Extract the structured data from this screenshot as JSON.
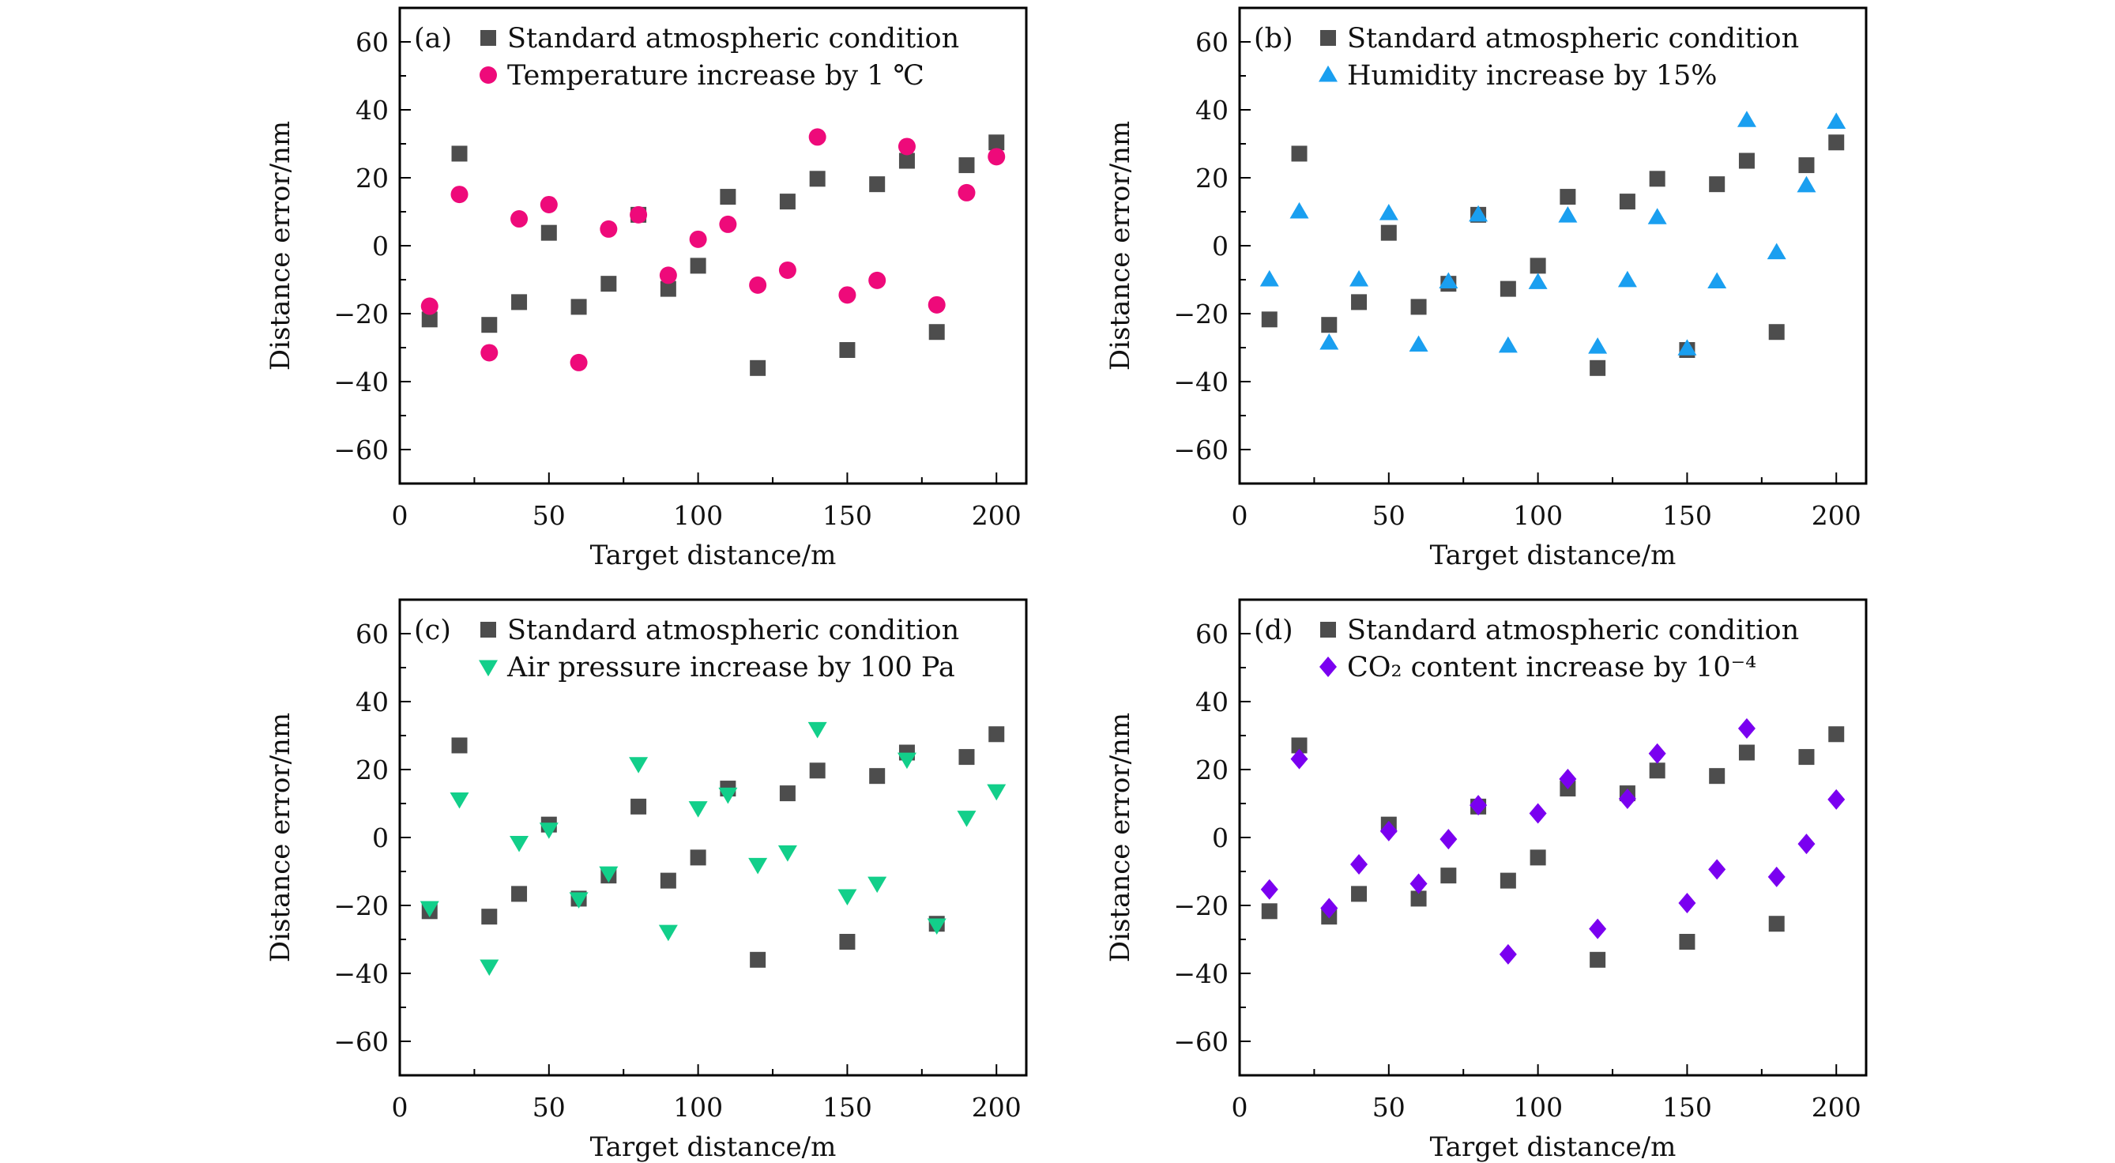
{
  "chart_data": [
    {
      "type": "scatter",
      "panel_label": "(a)",
      "xlabel": "Target distance/m",
      "ylabel": "Distance error/nm",
      "xlim": [
        0,
        210
      ],
      "ylim": [
        -70,
        70
      ],
      "xticks": [
        0,
        50,
        100,
        150,
        200
      ],
      "yticks": [
        -60,
        -40,
        -20,
        0,
        20,
        40,
        60
      ],
      "legend_position": "top-left",
      "x": [
        10,
        20,
        30,
        40,
        50,
        60,
        70,
        80,
        90,
        100,
        110,
        120,
        130,
        140,
        150,
        160,
        170,
        180,
        190,
        200
      ],
      "series": [
        {
          "name": "Standard atmospheric condition",
          "marker": "square",
          "color": "#4d4d4d",
          "values": [
            -21.7,
            27.1,
            -23.3,
            -16.6,
            3.8,
            -18.0,
            -11.2,
            9.1,
            -12.7,
            -5.9,
            14.4,
            -36.0,
            13.0,
            19.7,
            -30.7,
            18.1,
            25.0,
            -25.4,
            23.7,
            30.4
          ]
        },
        {
          "name": "Temperature increase by 1 ℃",
          "marker": "circle",
          "color": "#ee0a7a",
          "values": [
            -17.8,
            15.1,
            -31.5,
            7.9,
            12.1,
            -34.4,
            4.9,
            9.1,
            -8.7,
            1.9,
            6.3,
            -11.6,
            -7.2,
            32.0,
            -14.5,
            -10.2,
            29.2,
            -17.4,
            15.6,
            26.2
          ]
        }
      ]
    },
    {
      "type": "scatter",
      "panel_label": "(b)",
      "xlabel": "Target distance/m",
      "ylabel": "Distance error/nm",
      "xlim": [
        0,
        210
      ],
      "ylim": [
        -70,
        70
      ],
      "xticks": [
        0,
        50,
        100,
        150,
        200
      ],
      "yticks": [
        -60,
        -40,
        -20,
        0,
        20,
        40,
        60
      ],
      "legend_position": "top-left",
      "x": [
        10,
        20,
        30,
        40,
        50,
        60,
        70,
        80,
        90,
        100,
        110,
        120,
        130,
        140,
        150,
        160,
        170,
        180,
        190,
        200
      ],
      "series": [
        {
          "name": "Standard atmospheric condition",
          "marker": "square",
          "color": "#4d4d4d",
          "values": [
            -21.7,
            27.1,
            -23.3,
            -16.6,
            3.8,
            -18.0,
            -11.2,
            9.1,
            -12.7,
            -5.9,
            14.4,
            -36.0,
            13.0,
            19.7,
            -30.7,
            18.1,
            25.0,
            -25.4,
            23.7,
            30.4
          ]
        },
        {
          "name": "Humidity increase by 15%",
          "marker": "triangle-up",
          "color": "#1a9ff0",
          "values": [
            -10.0,
            10.0,
            -28.6,
            -10.0,
            9.5,
            -29.2,
            -10.6,
            9.1,
            -29.5,
            -10.8,
            8.8,
            -29.8,
            -10.2,
            8.3,
            -30.3,
            -10.6,
            36.9,
            -2.0,
            17.7,
            36.4
          ]
        }
      ]
    },
    {
      "type": "scatter",
      "panel_label": "(c)",
      "xlabel": "Target distance/m",
      "ylabel": "Distance error/nm",
      "xlim": [
        0,
        210
      ],
      "ylim": [
        -70,
        70
      ],
      "xticks": [
        0,
        50,
        100,
        150,
        200
      ],
      "yticks": [
        -60,
        -40,
        -20,
        0,
        20,
        40,
        60
      ],
      "legend_position": "top-left",
      "x": [
        10,
        20,
        30,
        40,
        50,
        60,
        70,
        80,
        90,
        100,
        110,
        120,
        130,
        140,
        150,
        160,
        170,
        180,
        190,
        200
      ],
      "series": [
        {
          "name": "Standard atmospheric condition",
          "marker": "square",
          "color": "#4d4d4d",
          "values": [
            -21.7,
            27.1,
            -23.3,
            -16.6,
            3.8,
            -18.0,
            -11.2,
            9.1,
            -12.7,
            -5.9,
            14.4,
            -36.0,
            13.0,
            19.7,
            -30.7,
            18.1,
            25.0,
            -25.4,
            23.7,
            30.4
          ]
        },
        {
          "name": "Air pressure increase by 100 Pa",
          "marker": "triangle-down",
          "color": "#12cf8a",
          "values": [
            -20.7,
            11.3,
            -37.9,
            -1.5,
            2.4,
            -18.1,
            -10.5,
            21.7,
            -27.7,
            8.7,
            12.7,
            -8.0,
            -4.3,
            32.0,
            -17.2,
            -13.5,
            23.0,
            -25.8,
            5.9,
            13.7
          ]
        }
      ]
    },
    {
      "type": "scatter",
      "panel_label": "(d)",
      "xlabel": "Target distance/m",
      "ylabel": "Distance error/nm",
      "xlim": [
        0,
        210
      ],
      "ylim": [
        -70,
        70
      ],
      "xticks": [
        0,
        50,
        100,
        150,
        200
      ],
      "yticks": [
        -60,
        -40,
        -20,
        0,
        20,
        40,
        60
      ],
      "legend_position": "top-left",
      "x": [
        10,
        20,
        30,
        40,
        50,
        60,
        70,
        80,
        90,
        100,
        110,
        120,
        130,
        140,
        150,
        160,
        170,
        180,
        190,
        200
      ],
      "series": [
        {
          "name": "Standard atmospheric condition",
          "marker": "square",
          "color": "#4d4d4d",
          "values": [
            -21.7,
            27.1,
            -23.3,
            -16.6,
            3.8,
            -18.0,
            -11.2,
            9.1,
            -12.7,
            -5.9,
            14.4,
            -36.0,
            13.0,
            19.7,
            -30.7,
            18.1,
            25.0,
            -25.4,
            23.7,
            30.4
          ]
        },
        {
          "name": "CO₂ content increase by 10⁻⁴",
          "marker": "diamond",
          "color": "#7a00f0",
          "values": [
            -15.3,
            23.1,
            -20.8,
            -7.9,
            1.9,
            -13.6,
            -0.5,
            9.5,
            -34.4,
            7.1,
            17.2,
            -26.9,
            11.4,
            24.7,
            -19.3,
            -9.4,
            32.1,
            -11.6,
            -1.9,
            11.2
          ]
        }
      ]
    }
  ]
}
